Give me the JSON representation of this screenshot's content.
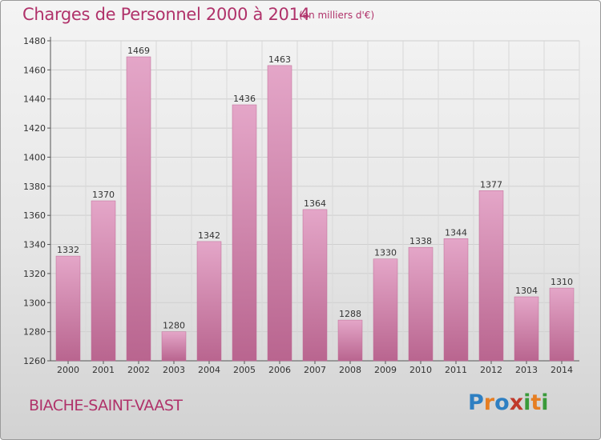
{
  "title": "Charges de Personnel 2000 à 2014",
  "subtitle": "(en milliers d'€)",
  "commune": "BIACHE-SAINT-VAAST",
  "logo": {
    "letters": [
      "P",
      "r",
      "o",
      "x",
      "i",
      "t",
      "i"
    ],
    "colors": [
      "#2e7fc2",
      "#e67e22",
      "#2e7fc2",
      "#c0392b",
      "#3a9a3a",
      "#e67e22",
      "#3a9a3a"
    ]
  },
  "colors": {
    "bar": "#c9709d",
    "bar_light": "#e4a6c8",
    "title": "#b0326a"
  },
  "chart_data": {
    "type": "bar",
    "title": "Charges de Personnel 2000 à 2014",
    "subtitle": "(en milliers d'€)",
    "categories": [
      "2000",
      "2001",
      "2002",
      "2003",
      "2004",
      "2005",
      "2006",
      "2007",
      "2008",
      "2009",
      "2010",
      "2011",
      "2012",
      "2013",
      "2014"
    ],
    "values": [
      1332,
      1370,
      1469,
      1280,
      1342,
      1436,
      1463,
      1364,
      1288,
      1330,
      1338,
      1344,
      1377,
      1304,
      1310
    ],
    "ylim": [
      1260,
      1480
    ],
    "yticks": [
      1260,
      1280,
      1300,
      1320,
      1340,
      1360,
      1380,
      1400,
      1420,
      1440,
      1460,
      1480
    ],
    "grid": true,
    "legend": "none"
  }
}
